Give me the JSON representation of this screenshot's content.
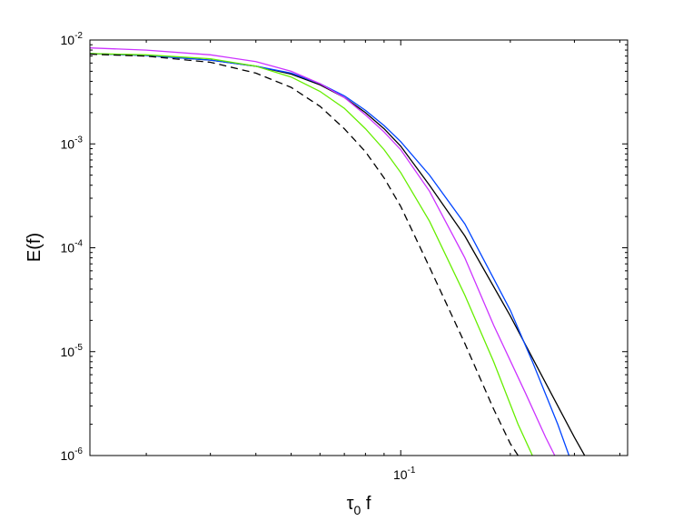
{
  "chart_data": {
    "type": "line",
    "xlabel": "τ0 f",
    "ylabel": "E(f)",
    "x_scale": "log",
    "y_scale": "log",
    "xlim": [
      0.014,
      0.42
    ],
    "ylim": [
      1e-06,
      0.01
    ],
    "x_ticks": [
      {
        "value": 0.1,
        "base": "10",
        "exp": "-1"
      }
    ],
    "y_ticks": [
      {
        "value": 1e-06,
        "base": "10",
        "exp": "-6"
      },
      {
        "value": 1e-05,
        "base": "10",
        "exp": "-5"
      },
      {
        "value": 0.0001,
        "base": "10",
        "exp": "-4"
      },
      {
        "value": 0.001,
        "base": "10",
        "exp": "-3"
      },
      {
        "value": 0.01,
        "base": "10",
        "exp": "-2"
      }
    ],
    "grid": false,
    "legend": "none",
    "series": [
      {
        "color": "#000000",
        "dash": "solid",
        "points": [
          [
            0.014,
            0.0074
          ],
          [
            0.02,
            0.0071
          ],
          [
            0.03,
            0.0064
          ],
          [
            0.04,
            0.0056
          ],
          [
            0.05,
            0.0047
          ],
          [
            0.06,
            0.0037
          ],
          [
            0.07,
            0.0028
          ],
          [
            0.08,
            0.002
          ],
          [
            0.09,
            0.0014
          ],
          [
            0.1,
            0.00095
          ],
          [
            0.12,
            0.0004
          ],
          [
            0.15,
            0.00013
          ],
          [
            0.2,
            2.2e-05
          ],
          [
            0.25,
            5e-06
          ],
          [
            0.3,
            1.5e-06
          ],
          [
            0.32,
            1e-06
          ]
        ]
      },
      {
        "color": "#0044ff",
        "dash": "solid",
        "points": [
          [
            0.014,
            0.0074
          ],
          [
            0.02,
            0.0071
          ],
          [
            0.03,
            0.0064
          ],
          [
            0.04,
            0.0056
          ],
          [
            0.05,
            0.0048
          ],
          [
            0.06,
            0.0038
          ],
          [
            0.07,
            0.0029
          ],
          [
            0.08,
            0.0021
          ],
          [
            0.09,
            0.0015
          ],
          [
            0.1,
            0.00105
          ],
          [
            0.12,
            0.0005
          ],
          [
            0.15,
            0.00017
          ],
          [
            0.2,
            2.5e-05
          ],
          [
            0.23,
            8e-06
          ],
          [
            0.27,
            2e-06
          ],
          [
            0.29,
            1e-06
          ]
        ]
      },
      {
        "color": "#cc33ff",
        "dash": "solid",
        "points": [
          [
            0.014,
            0.0084
          ],
          [
            0.02,
            0.008
          ],
          [
            0.03,
            0.0072
          ],
          [
            0.04,
            0.0062
          ],
          [
            0.05,
            0.005
          ],
          [
            0.06,
            0.0038
          ],
          [
            0.07,
            0.0028
          ],
          [
            0.08,
            0.0019
          ],
          [
            0.09,
            0.0013
          ],
          [
            0.1,
            0.00088
          ],
          [
            0.12,
            0.00035
          ],
          [
            0.15,
            8e-05
          ],
          [
            0.18,
            1.8e-05
          ],
          [
            0.22,
            4e-06
          ],
          [
            0.25,
            1.5e-06
          ],
          [
            0.265,
            1e-06
          ]
        ]
      },
      {
        "color": "#66ee00",
        "dash": "solid",
        "points": [
          [
            0.014,
            0.0074
          ],
          [
            0.02,
            0.0072
          ],
          [
            0.03,
            0.0066
          ],
          [
            0.04,
            0.0056
          ],
          [
            0.05,
            0.0044
          ],
          [
            0.06,
            0.0032
          ],
          [
            0.07,
            0.0022
          ],
          [
            0.08,
            0.0014
          ],
          [
            0.09,
            0.00088
          ],
          [
            0.1,
            0.00053
          ],
          [
            0.12,
            0.00018
          ],
          [
            0.15,
            3.5e-05
          ],
          [
            0.18,
            8e-06
          ],
          [
            0.21,
            2e-06
          ],
          [
            0.23,
            1e-06
          ]
        ]
      },
      {
        "color": "#000000",
        "dash": "dashed",
        "points": [
          [
            0.014,
            0.0073
          ],
          [
            0.02,
            0.007
          ],
          [
            0.03,
            0.0061
          ],
          [
            0.04,
            0.0048
          ],
          [
            0.05,
            0.0035
          ],
          [
            0.06,
            0.0023
          ],
          [
            0.07,
            0.0014
          ],
          [
            0.08,
            0.00084
          ],
          [
            0.09,
            0.00047
          ],
          [
            0.1,
            0.00025
          ],
          [
            0.12,
            6.5e-05
          ],
          [
            0.15,
            1.2e-05
          ],
          [
            0.18,
            2.8e-06
          ],
          [
            0.2,
            1.3e-06
          ],
          [
            0.21,
            1e-06
          ]
        ]
      }
    ]
  }
}
